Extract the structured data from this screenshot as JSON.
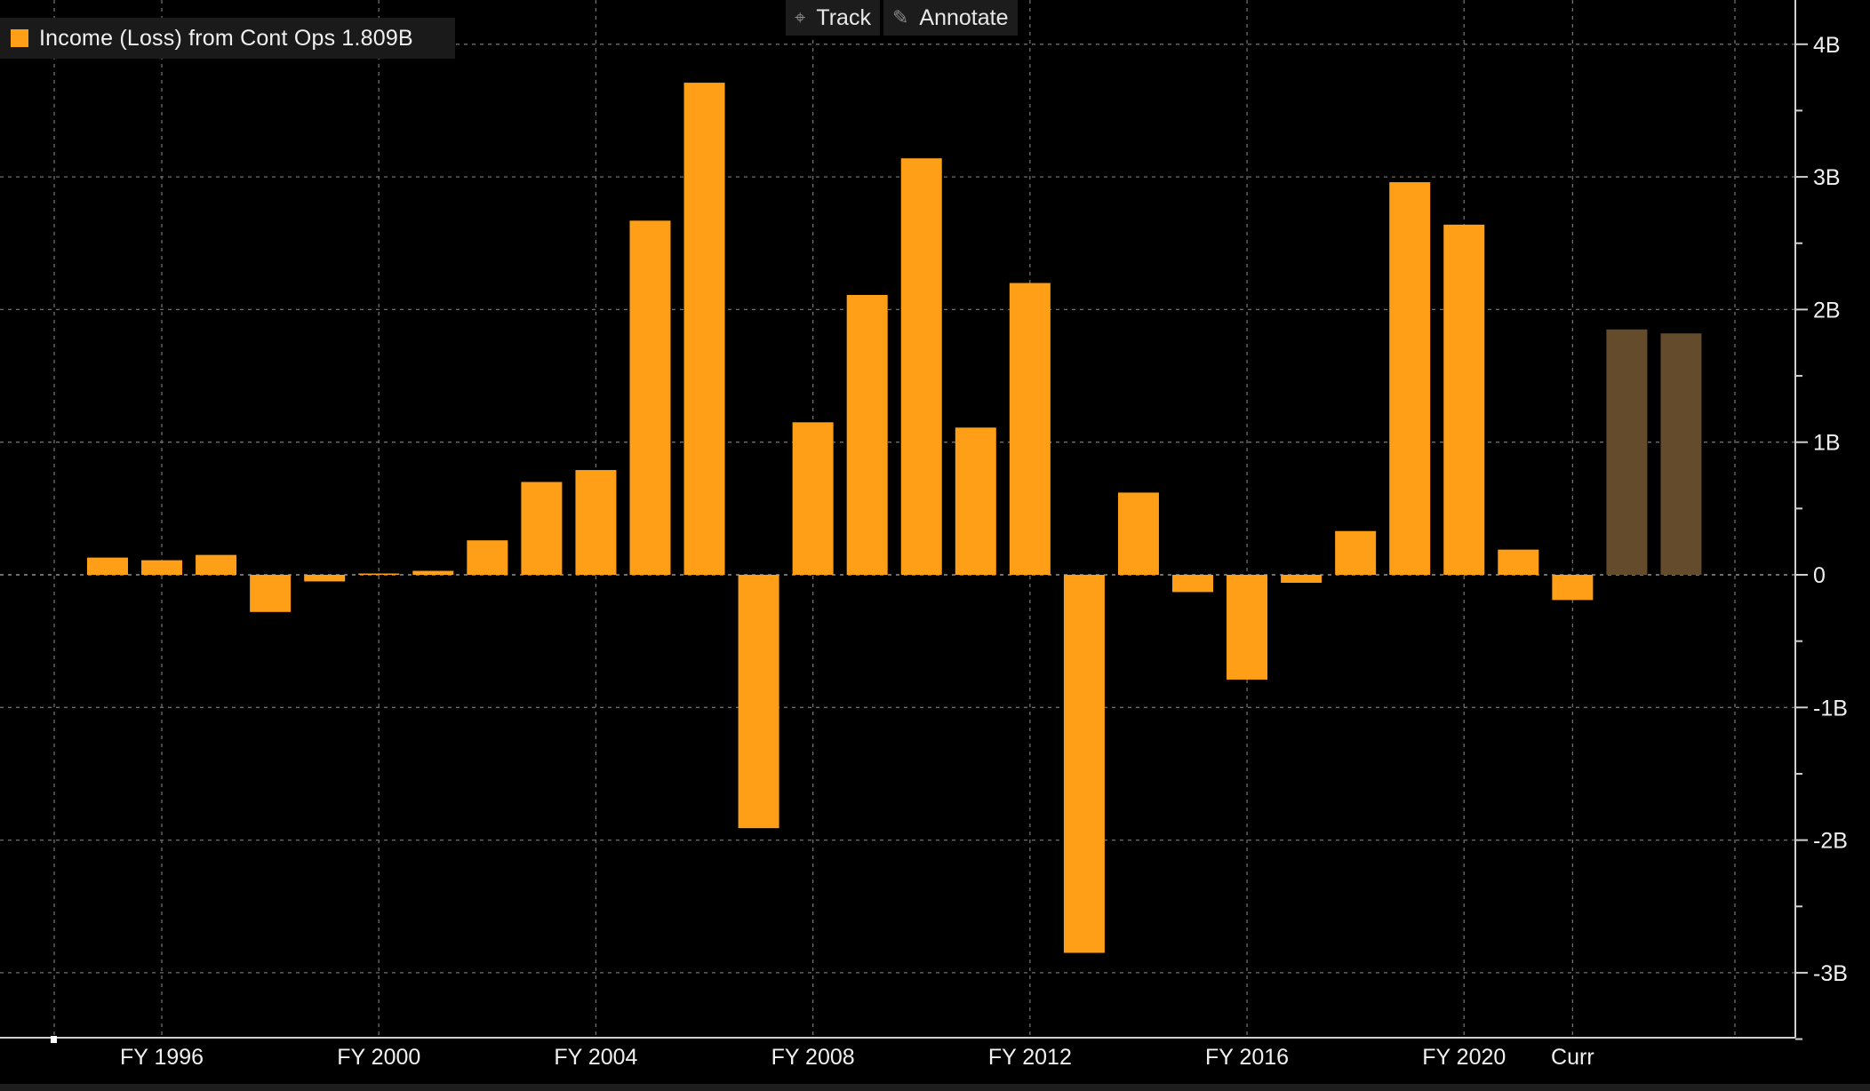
{
  "legend": {
    "label": "Income (Loss) from Cont Ops 1.809B",
    "color": "#ff9e17"
  },
  "toolbar": {
    "track_label": "Track",
    "track_icon": "crosshair-icon",
    "annotate_label": "Annotate",
    "annotate_icon": "pencil-icon"
  },
  "colors": {
    "bar": "#ff9e17",
    "estimate": "#634b2b",
    "background": "#000000",
    "grid": "#6e6e6e"
  },
  "chart_data": {
    "type": "bar",
    "title": "",
    "xlabel": "",
    "ylabel": "",
    "unit": "B",
    "x": [
      1995,
      1996,
      1997,
      1998,
      1999,
      2000,
      2001,
      2002,
      2003,
      2004,
      2005,
      2006,
      2007,
      2008,
      2009,
      2010,
      2011,
      2012,
      2013,
      2014,
      2015,
      2016,
      2017,
      2018,
      2019,
      2020,
      2021,
      2022,
      2023,
      2024
    ],
    "values": [
      0.13,
      0.11,
      0.15,
      -0.28,
      -0.05,
      0.01,
      0.03,
      0.26,
      0.7,
      0.79,
      2.67,
      3.71,
      -1.91,
      1.15,
      2.11,
      3.14,
      1.11,
      2.2,
      -2.85,
      0.62,
      -0.13,
      -0.79,
      -0.06,
      0.33,
      2.96,
      2.64,
      0.19,
      -0.19,
      1.85,
      1.82
    ],
    "estimate": [
      false,
      false,
      false,
      false,
      false,
      false,
      false,
      false,
      false,
      false,
      false,
      false,
      false,
      false,
      false,
      false,
      false,
      false,
      false,
      false,
      false,
      false,
      false,
      false,
      false,
      false,
      false,
      false,
      true,
      true
    ],
    "ylim": [
      -3.5,
      4.3
    ],
    "yticks": [
      4,
      3,
      2,
      1,
      0,
      -1,
      -2,
      -3
    ],
    "ytick_labels": [
      "4B",
      "3B",
      "2B",
      "1B",
      "0",
      "-1B",
      "-2B",
      "-3B"
    ],
    "xtick_labels": [
      {
        "label": "FY 1996",
        "x": 1996
      },
      {
        "label": "FY 2000",
        "x": 2000
      },
      {
        "label": "FY 2004",
        "x": 2004
      },
      {
        "label": "FY 2008",
        "x": 2008
      },
      {
        "label": "FY 2012",
        "x": 2012
      },
      {
        "label": "FY 2016",
        "x": 2016
      },
      {
        "label": "FY 2020",
        "x": 2020
      },
      {
        "label": "Curr",
        "x": 2022
      }
    ],
    "grid": true,
    "legend_position": "top-left"
  }
}
